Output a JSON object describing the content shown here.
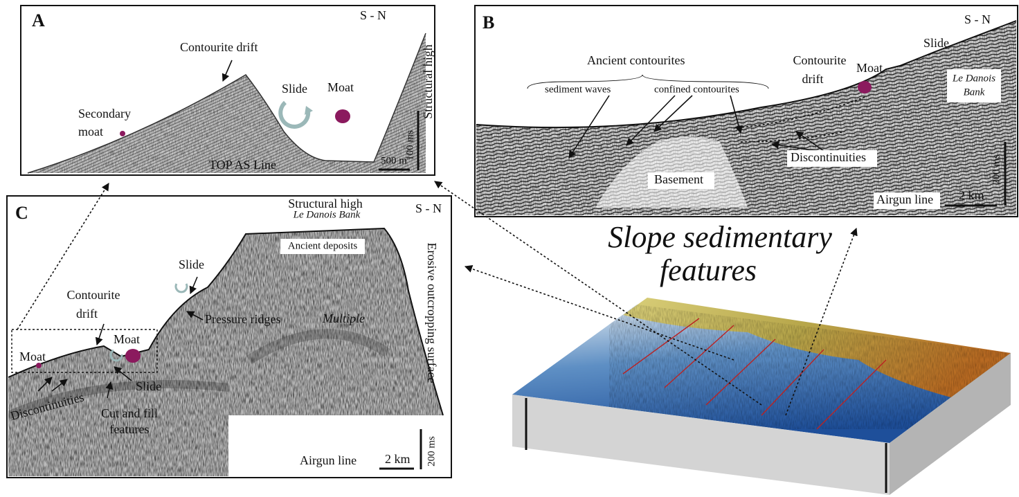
{
  "panel_a": {
    "label": "A",
    "orientation": "S - N",
    "contourite_drift": "Contourite drift",
    "slide": "Slide",
    "moat": "Moat",
    "secondary_moat": [
      "Secondary",
      "moat"
    ],
    "structural_high": "Structural high",
    "scale_vertical": "100 ms",
    "scale_horizontal": "500 m",
    "line_name": "TOP AS Line"
  },
  "panel_b": {
    "label": "B",
    "orientation": "S - N",
    "slide": "Slide",
    "le_danois_bank": [
      "Le Danois",
      "Bank"
    ],
    "ancient_contourites": "Ancient contourites",
    "contourite_drift": [
      "Contourite",
      "drift"
    ],
    "moat": "Moat",
    "sediment_waves": "sediment waves",
    "confined_contourites": "confined contourites",
    "discontinuities": "Discontinuities",
    "basement": "Basement",
    "scale_vertical": "200 ms",
    "line_name": "Airgun line",
    "scale_horizontal": "2 km"
  },
  "panel_c": {
    "label": "C",
    "orientation": "S - N",
    "structural_high": "Structural high",
    "le_danois_bank": "Le Danois Bank",
    "ancient_deposits": "Ancient deposits",
    "slide_upper": "Slide",
    "erosive_surface": "Erosive outcropping surface",
    "contourite_drift": [
      "Contourite",
      "drift"
    ],
    "pressure_ridges": "Pressure ridges",
    "multiple": "Multiple",
    "moat_left": "Moat",
    "moat_right": "Moat",
    "slide_lower": "Slide",
    "discontinuities": "Discontinuities",
    "cut_and_fill": [
      "Cut and fill",
      "features"
    ],
    "line_name": "Airgun line",
    "scale_horizontal": "2 km",
    "scale_vertical": "200 ms"
  },
  "title": [
    "Slope sedimentary",
    "features"
  ]
}
